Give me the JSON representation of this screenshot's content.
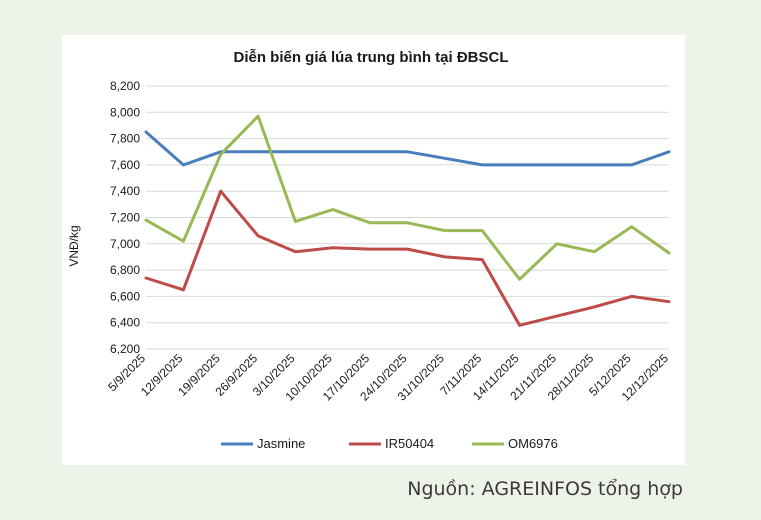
{
  "chart_data": {
    "type": "line",
    "title": "Diễn biến giá lúa trung bình tại ĐBSCL",
    "ylabel": "VNĐ/kg",
    "xlabel": "",
    "categories": [
      "5/9/2025",
      "12/9/2025",
      "19/9/2025",
      "26/9/2025",
      "3/10/2025",
      "10/10/2025",
      "17/10/2025",
      "24/10/2025",
      "31/10/2025",
      "7/11/2025",
      "14/11/2025",
      "21/11/2025",
      "28/11/2025",
      "5/12/2025",
      "12/12/2025"
    ],
    "ylim": [
      6200,
      8200
    ],
    "yticks": [
      6200,
      6400,
      6600,
      6800,
      7000,
      7200,
      7400,
      7600,
      7800,
      8000,
      8200
    ],
    "ytick_labels": [
      "6,200",
      "6,400",
      "6,600",
      "6,800",
      "7,000",
      "7,200",
      "7,400",
      "7,600",
      "7,800",
      "8,000",
      "8,200"
    ],
    "grid": true,
    "legend_position": "bottom",
    "series": [
      {
        "name": "Jasmine",
        "color": "#4a7ebb",
        "values": [
          7850,
          7600,
          7700,
          7700,
          7700,
          7700,
          7700,
          7700,
          7650,
          7600,
          7600,
          7600,
          7600,
          7600,
          7700
        ]
      },
      {
        "name": "IR50404",
        "color": "#be4b48",
        "values": [
          6740,
          6650,
          7400,
          7060,
          6940,
          6970,
          6960,
          6960,
          6900,
          6880,
          6380,
          6450,
          6520,
          6600,
          6560
        ]
      },
      {
        "name": "OM6976",
        "color": "#98b954",
        "values": [
          7180,
          7020,
          7680,
          7970,
          7170,
          7260,
          7160,
          7160,
          7100,
          7100,
          6730,
          7000,
          6940,
          7130,
          6930
        ]
      }
    ]
  },
  "source_note": "Nguồn: AGREINFOS tổng hợp"
}
